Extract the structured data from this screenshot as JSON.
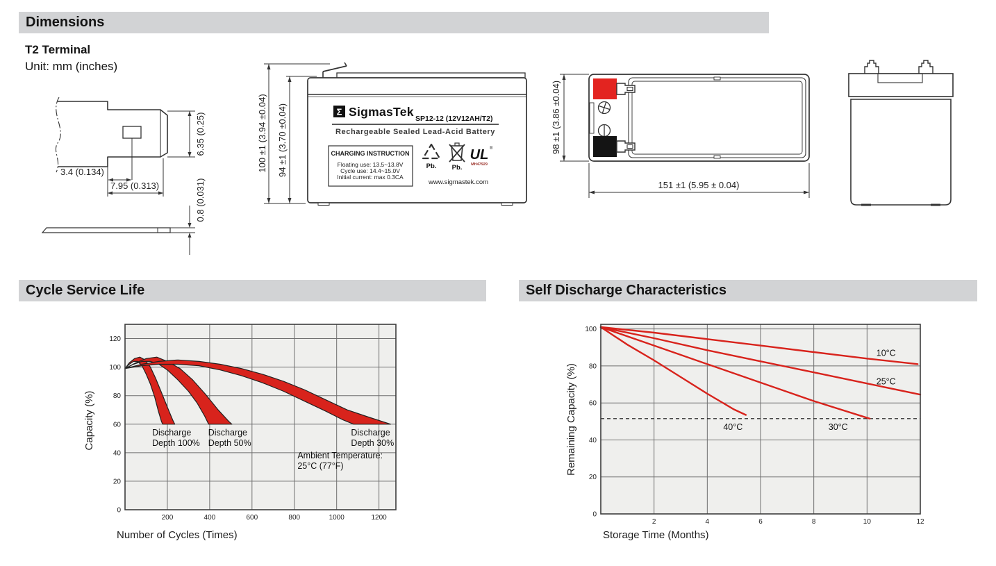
{
  "sections": {
    "dimensions_title": "Dimensions",
    "terminal_type": "T2 Terminal",
    "unit_note": "Unit: mm (inches)",
    "cycle_life_title": "Cycle Service Life",
    "self_discharge_title": "Self Discharge Characteristics"
  },
  "terminal_drawing": {
    "dim_hole_offset": "3.4 (0.134)",
    "dim_tab_length": "7.95 (0.313)",
    "dim_tab_height": "6.35 (0.25)",
    "dim_tab_thickness": "0.8 (0.031)"
  },
  "front_view": {
    "dim_total_height": "100 ±1 (3.94 ±0.04)",
    "dim_case_height": "94 ±1 (3.70 ±0.04)",
    "label": {
      "sigma": "Σ",
      "brand": "SigmasTek",
      "model": "SP12-12 (12V12AH/T2)",
      "subtitle": "Rechargeable Sealed Lead-Acid Battery",
      "charging_title": "CHARGING INSTRUCTION",
      "charging_line1": "Floating use: 13.5~13.8V",
      "charging_line2": "Cycle use: 14.4~15.0V",
      "charging_line3": "Initial current: max 0.3CA",
      "pb_recycle": "Pb.",
      "pb_bin": "Pb.",
      "ul_mark": "UL",
      "ul_reg": "®",
      "ul_code": "MH47929",
      "website": "www.sigmastek.com"
    }
  },
  "top_view": {
    "dim_width": "151 ±1 (5.95 ± 0.04)",
    "dim_depth": "98 ±1 (3.86 ±0.04)",
    "positive_color": "#e32420",
    "negative_color": "#141414"
  },
  "chart_data": [
    {
      "type": "area",
      "title": "Cycle Service Life",
      "xlabel": "Number of Cycles (Times)",
      "ylabel": "Capacity (%)",
      "xlim": [
        0,
        1280
      ],
      "ylim": [
        0,
        130
      ],
      "xticks": [
        200,
        400,
        600,
        800,
        1000,
        1200
      ],
      "yticks": [
        0,
        20,
        40,
        60,
        80,
        100,
        120
      ],
      "grid": true,
      "legend_position": "none",
      "color": "#d8231c",
      "bands": [
        {
          "name": "Discharge Depth 100%",
          "upper": [
            [
              0,
              99
            ],
            [
              20,
              103
            ],
            [
              45,
              106
            ],
            [
              70,
              107
            ],
            [
              95,
              105
            ],
            [
              120,
              100
            ],
            [
              145,
              92
            ],
            [
              170,
              83
            ],
            [
              200,
              72
            ],
            [
              225,
              63
            ],
            [
              235,
              60
            ]
          ],
          "lower": [
            [
              0,
              99
            ],
            [
              20,
              102
            ],
            [
              40,
              104
            ],
            [
              60,
              104
            ],
            [
              80,
              101
            ],
            [
              100,
              95
            ],
            [
              120,
              88
            ],
            [
              140,
              79
            ],
            [
              158,
              69
            ],
            [
              172,
              62
            ],
            [
              178,
              60
            ]
          ]
        },
        {
          "name": "Discharge Depth 50%",
          "upper": [
            [
              0,
              99
            ],
            [
              50,
              103
            ],
            [
              100,
              106
            ],
            [
              150,
              107
            ],
            [
              200,
              104
            ],
            [
              260,
              99
            ],
            [
              320,
              91
            ],
            [
              380,
              81
            ],
            [
              440,
              70
            ],
            [
              490,
              62
            ],
            [
              505,
              60
            ]
          ],
          "lower": [
            [
              0,
              99
            ],
            [
              40,
              102
            ],
            [
              80,
              104
            ],
            [
              120,
              104
            ],
            [
              160,
              102
            ],
            [
              200,
              98
            ],
            [
              250,
              91
            ],
            [
              300,
              83
            ],
            [
              340,
              75
            ],
            [
              375,
              66
            ],
            [
              395,
              60
            ]
          ]
        },
        {
          "name": "Discharge Depth 30%",
          "upper": [
            [
              0,
              99
            ],
            [
              80,
              102
            ],
            [
              160,
              104
            ],
            [
              250,
              105
            ],
            [
              350,
              104
            ],
            [
              450,
              102
            ],
            [
              550,
              99
            ],
            [
              650,
              95
            ],
            [
              750,
              90
            ],
            [
              850,
              84
            ],
            [
              950,
              77
            ],
            [
              1050,
              70
            ],
            [
              1150,
              65
            ],
            [
              1255,
              60
            ]
          ],
          "lower": [
            [
              0,
              99
            ],
            [
              80,
              101
            ],
            [
              160,
              102
            ],
            [
              250,
              102
            ],
            [
              350,
              101
            ],
            [
              450,
              98
            ],
            [
              550,
              94
            ],
            [
              650,
              89
            ],
            [
              750,
              83
            ],
            [
              850,
              76
            ],
            [
              950,
              69
            ],
            [
              1030,
              63
            ],
            [
              1080,
              60
            ]
          ]
        }
      ],
      "annotations": [
        {
          "lines": [
            "Discharge",
            "Depth 100%"
          ],
          "x": 128,
          "y": 52
        },
        {
          "lines": [
            "Discharge",
            "Depth 50%"
          ],
          "x": 393,
          "y": 52
        },
        {
          "lines": [
            "Discharge",
            "Depth 30%"
          ],
          "x": 1068,
          "y": 52
        },
        {
          "lines": [
            "Ambient Temperature:",
            "25°C (77°F)"
          ],
          "x": 815,
          "y": 36
        }
      ]
    },
    {
      "type": "line",
      "title": "Self Discharge Characteristics",
      "xlabel": "Storage Time (Months)",
      "ylabel": "Remaining Capacity (%)",
      "xlim": [
        0,
        12
      ],
      "ylim": [
        0,
        102.5
      ],
      "xticks": [
        2,
        4,
        6,
        8,
        10,
        12
      ],
      "yticks": [
        0,
        20,
        40,
        60,
        80,
        100
      ],
      "grid": true,
      "legend_position": "inline-labels",
      "color": "#d8231c",
      "dashed_line_y": 51.5,
      "series": [
        {
          "name": "10°C",
          "points": [
            [
              0,
              101
            ],
            [
              2,
              98
            ],
            [
              4,
              94.5
            ],
            [
              6,
              91
            ],
            [
              8,
              87.5
            ],
            [
              10,
              84
            ],
            [
              11.9,
              81
            ]
          ],
          "label_x": 10.35,
          "label_y": 85.5
        },
        {
          "name": "25°C",
          "points": [
            [
              0,
              101
            ],
            [
              2,
              95
            ],
            [
              4,
              88.5
            ],
            [
              6,
              82.5
            ],
            [
              8,
              76.5
            ],
            [
              10,
              70.5
            ],
            [
              12,
              64.5
            ]
          ],
          "label_x": 10.35,
          "label_y": 70
        },
        {
          "name": "30°C",
          "points": [
            [
              0,
              101
            ],
            [
              2,
              91
            ],
            [
              4,
              81
            ],
            [
              6,
              71
            ],
            [
              8,
              61
            ],
            [
              10.1,
              51.5
            ]
          ],
          "label_x": 8.55,
          "label_y": 45.5
        },
        {
          "name": "40°C",
          "points": [
            [
              0,
              101
            ],
            [
              1,
              91.5
            ],
            [
              2,
              83
            ],
            [
              3,
              74
            ],
            [
              4,
              65
            ],
            [
              5,
              56.5
            ],
            [
              5.45,
              53.5
            ]
          ],
          "label_x": 4.6,
          "label_y": 45.5
        }
      ]
    }
  ]
}
